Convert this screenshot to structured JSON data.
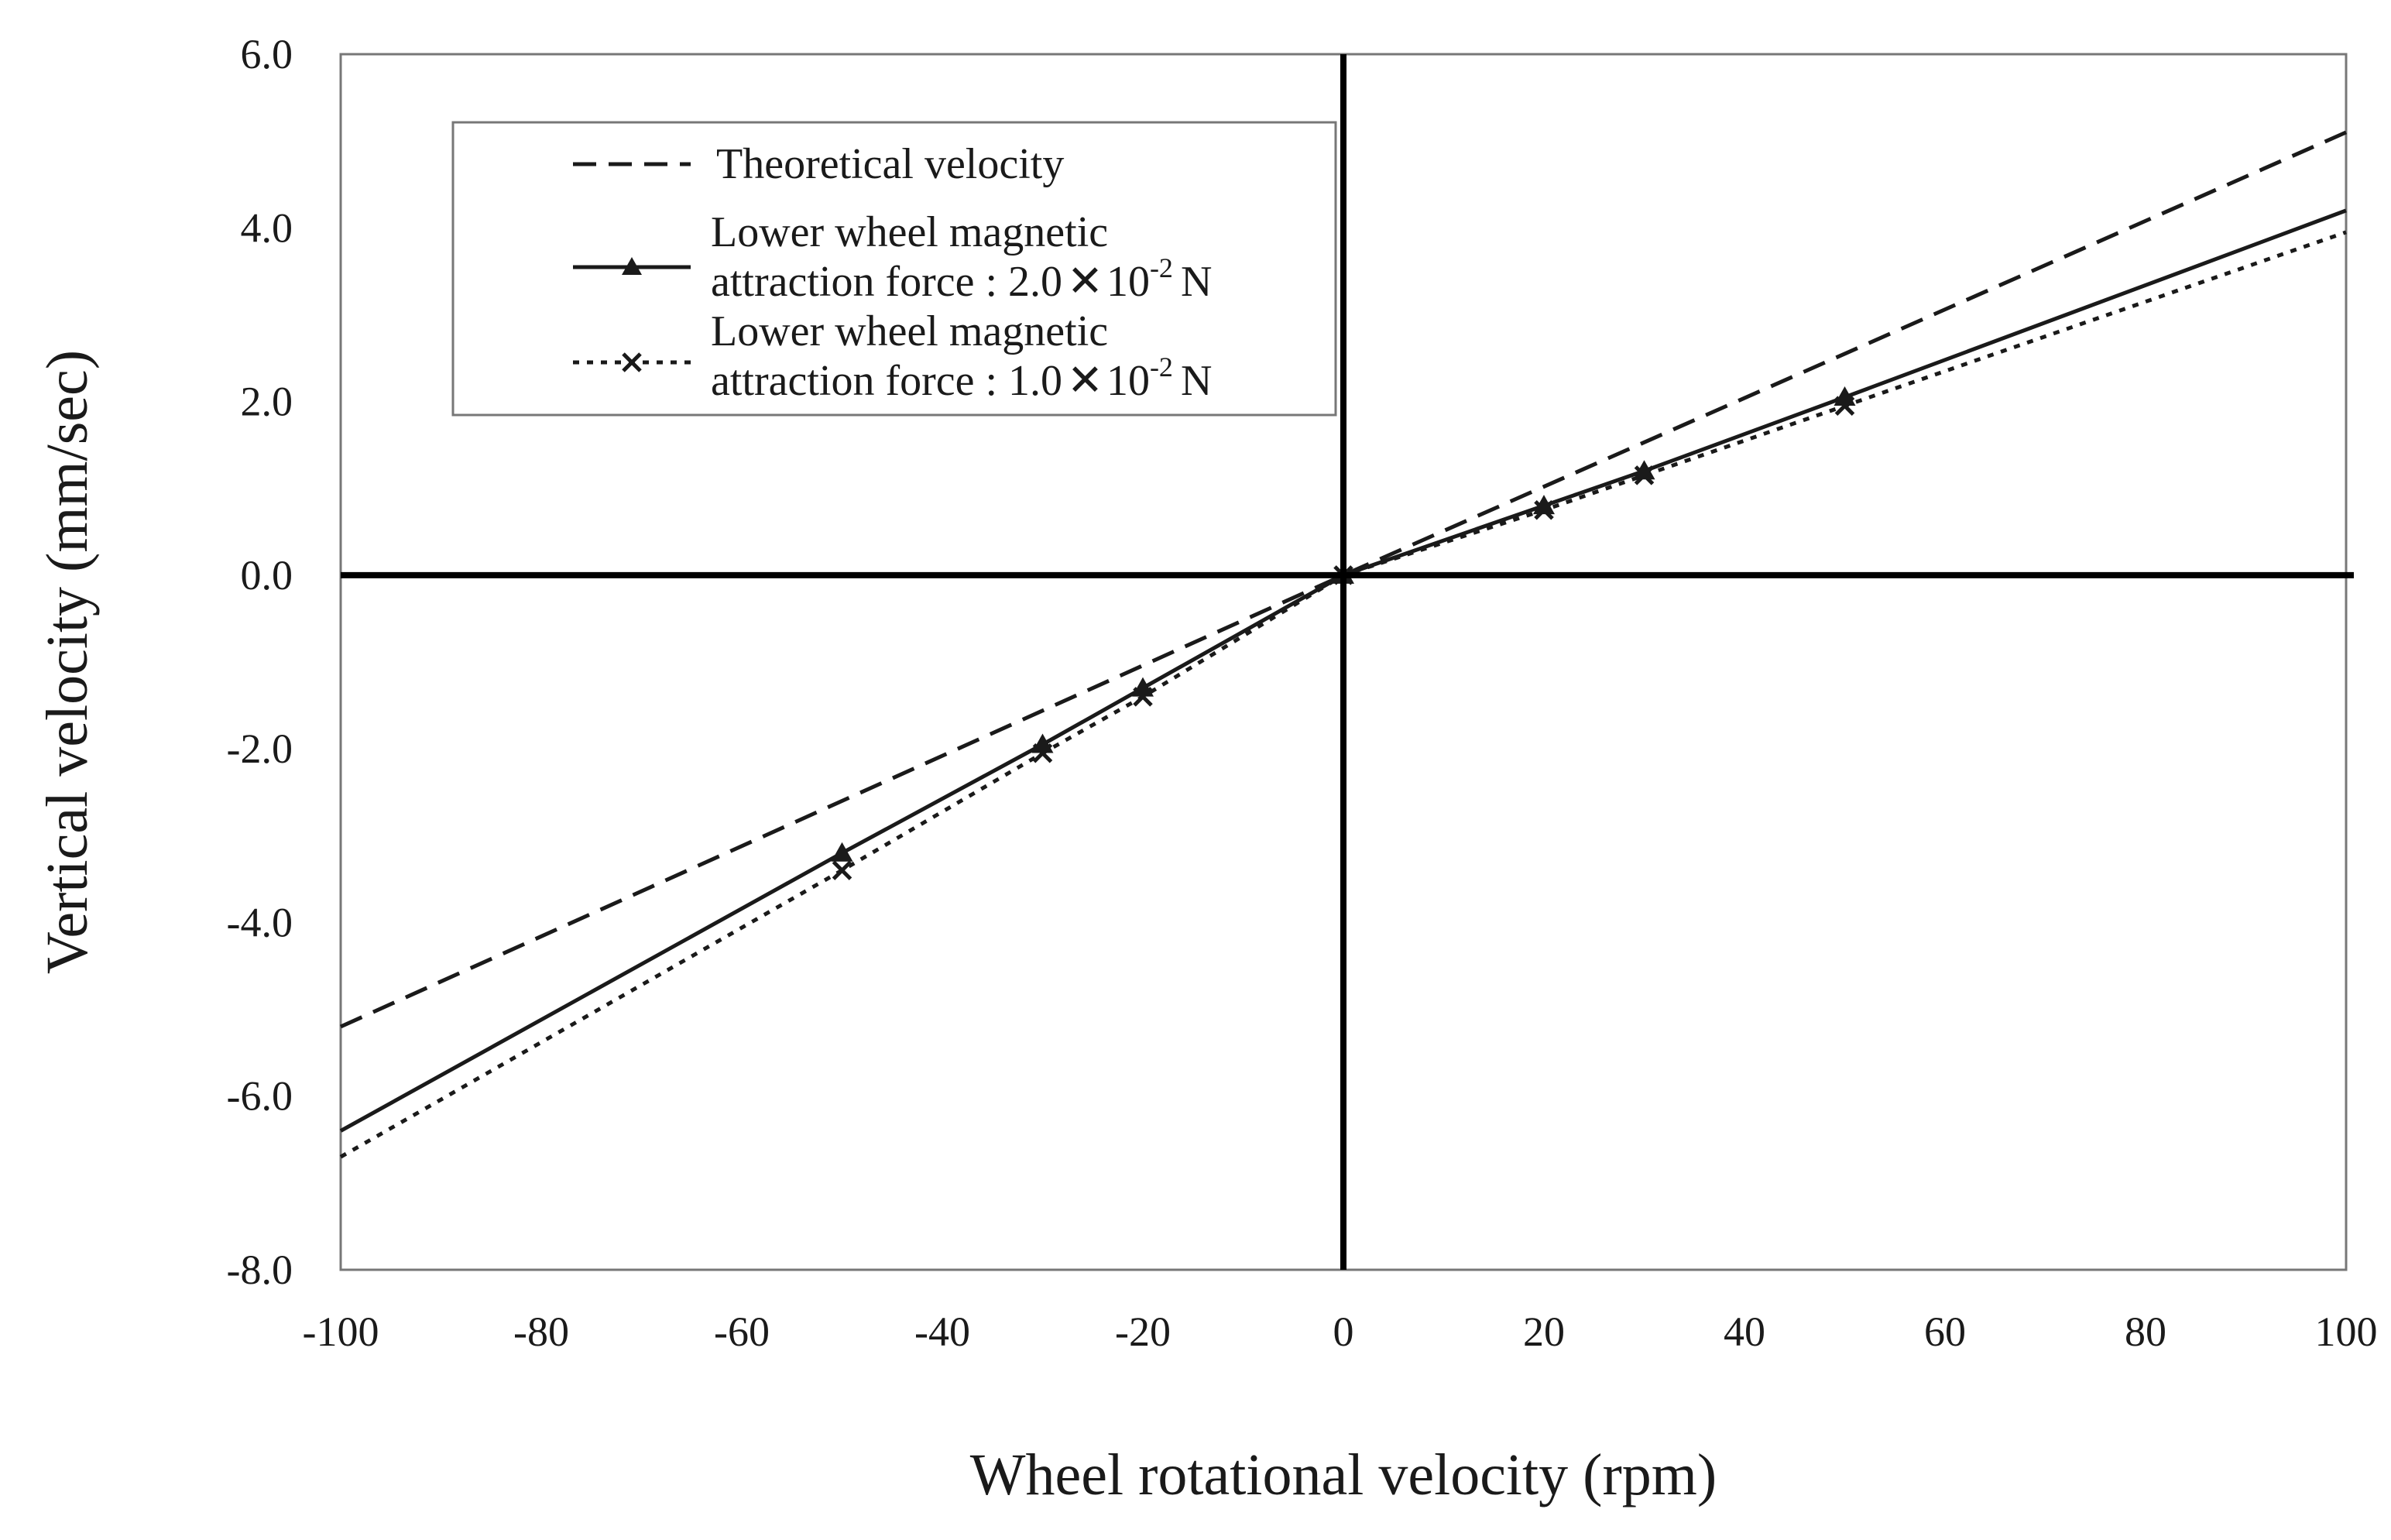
{
  "chart_data": {
    "type": "line",
    "title": "",
    "xlabel": "Wheel rotational velocity (rpm)",
    "ylabel": "Vertical velocity (mm/sec)",
    "xlim": [
      -100,
      100
    ],
    "ylim": [
      -8.0,
      6.0
    ],
    "x_ticks": [
      -100,
      -80,
      -60,
      -40,
      -20,
      0,
      20,
      40,
      60,
      80,
      100
    ],
    "x_tick_labels": [
      "-100",
      "-80",
      "-60",
      "-40",
      "-20",
      "0",
      "20",
      "40",
      "60",
      "80",
      "100"
    ],
    "y_ticks": [
      -8,
      -6,
      -4,
      -2,
      0,
      2,
      4,
      6
    ],
    "y_tick_labels": [
      "-8.0",
      "-6.0",
      "-4.0",
      "-2.0",
      "0.0",
      "2.0",
      "4.0",
      "6.0"
    ],
    "grid": false,
    "legend_position": "top-left",
    "series": [
      {
        "name": "Theoretical velocity",
        "style": "dashed",
        "marker": "none",
        "color": "#1a1a1a",
        "x": [
          -100,
          0,
          100
        ],
        "y": [
          -5.2,
          0.0,
          5.1
        ]
      },
      {
        "name_line1": "Lower wheel magnetic",
        "name_line2_prefix": "attraction force : 2.0",
        "name_times": "✕",
        "name_base": "10",
        "name_exp": "-2",
        "name_unit": "N",
        "style": "solid",
        "marker": "triangle",
        "color": "#1a1a1a",
        "x": [
          -100,
          -50,
          -30,
          -20,
          0,
          20,
          30,
          50,
          100
        ],
        "y": [
          -6.4,
          -3.2,
          -1.95,
          -1.3,
          0.0,
          0.8,
          1.2,
          2.05,
          4.2
        ]
      },
      {
        "name_line1": "Lower wheel magnetic",
        "name_line2_prefix": "attraction force : 1.0",
        "name_times": "✕",
        "name_base": "10",
        "name_exp": "-2",
        "name_unit": "N",
        "style": "dotted",
        "marker": "x",
        "color": "#1a1a1a",
        "x": [
          -100,
          -50,
          -30,
          -20,
          0,
          20,
          30,
          50,
          100
        ],
        "y": [
          -6.7,
          -3.4,
          -2.05,
          -1.4,
          0.0,
          0.75,
          1.15,
          1.95,
          3.95
        ]
      }
    ]
  }
}
